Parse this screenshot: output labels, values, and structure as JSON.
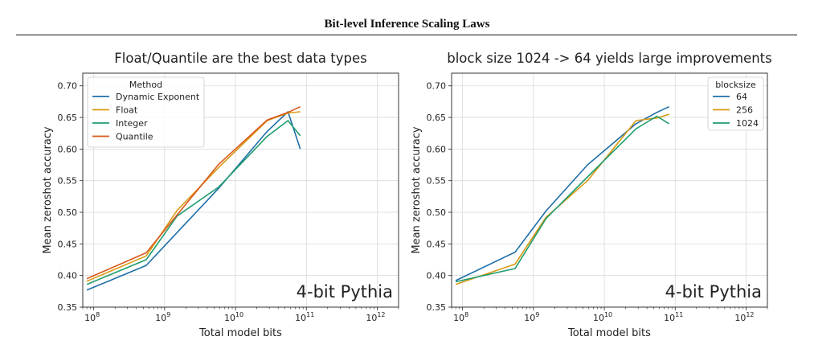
{
  "page": {
    "header": "Bit-level Inference Scaling Laws"
  },
  "chart_data": [
    {
      "type": "line",
      "title": "Float/Quantile are the best data types",
      "xlabel": "Total model bits",
      "ylabel": "Mean zeroshot accuracy",
      "xscale": "log",
      "xlim": [
        70000000,
        2000000000000
      ],
      "ylim": [
        0.35,
        0.72
      ],
      "x_ticks": [
        {
          "exp": 8,
          "label": "10",
          "sup": "8"
        },
        {
          "exp": 9,
          "label": "10",
          "sup": "9"
        },
        {
          "exp": 10,
          "label": "10",
          "sup": "10"
        },
        {
          "exp": 11,
          "label": "10",
          "sup": "11"
        },
        {
          "exp": 12,
          "label": "10",
          "sup": "12"
        }
      ],
      "y_ticks": [
        "0.35",
        "0.40",
        "0.45",
        "0.50",
        "0.55",
        "0.60",
        "0.65",
        "0.70"
      ],
      "grid": true,
      "legend": {
        "title": "Method",
        "location": "upper-left"
      },
      "annotation": "4-bit Pythia",
      "series": [
        {
          "name": "Dynamic Exponent",
          "color": "#1f6fa8",
          "x": [
            80000000,
            550000000,
            1500000000,
            5800000000,
            28000000000,
            55000000000,
            82000000000
          ],
          "y": [
            0.377,
            0.416,
            0.468,
            0.538,
            0.628,
            0.659,
            0.6
          ]
        },
        {
          "name": "Float",
          "color": "#d89a12",
          "x": [
            80000000,
            550000000,
            1500000000,
            5800000000,
            28000000000,
            55000000000,
            82000000000
          ],
          "y": [
            0.391,
            0.431,
            0.503,
            0.571,
            0.645,
            0.657,
            0.659
          ]
        },
        {
          "name": "Integer",
          "color": "#1f9c6f",
          "x": [
            80000000,
            550000000,
            1500000000,
            5800000000,
            28000000000,
            55000000000,
            82000000000
          ],
          "y": [
            0.386,
            0.425,
            0.494,
            0.54,
            0.62,
            0.645,
            0.621
          ]
        },
        {
          "name": "Quantile",
          "color": "#d9581b",
          "x": [
            80000000,
            550000000,
            1500000000,
            5800000000,
            28000000000,
            55000000000,
            82000000000
          ],
          "y": [
            0.395,
            0.436,
            0.496,
            0.576,
            0.646,
            0.658,
            0.667
          ]
        }
      ]
    },
    {
      "type": "line",
      "title": "block size 1024 -> 64 yields large improvements",
      "xlabel": "Total model bits",
      "ylabel": "Mean zeroshot accuracy",
      "xscale": "log",
      "xlim": [
        70000000,
        2000000000000
      ],
      "ylim": [
        0.35,
        0.72
      ],
      "x_ticks": [
        {
          "exp": 8,
          "label": "10",
          "sup": "8"
        },
        {
          "exp": 9,
          "label": "10",
          "sup": "9"
        },
        {
          "exp": 10,
          "label": "10",
          "sup": "10"
        },
        {
          "exp": 11,
          "label": "10",
          "sup": "11"
        },
        {
          "exp": 12,
          "label": "10",
          "sup": "12"
        }
      ],
      "y_ticks": [
        "0.35",
        "0.40",
        "0.45",
        "0.50",
        "0.55",
        "0.60",
        "0.65",
        "0.70"
      ],
      "grid": true,
      "legend": {
        "title": "blocksize",
        "location": "upper-right"
      },
      "annotation": "4-bit Pythia",
      "series": [
        {
          "name": "64",
          "color": "#1f6fa8",
          "x": [
            80000000,
            550000000,
            1500000000,
            5800000000,
            28000000000,
            55000000000,
            82000000000
          ],
          "y": [
            0.392,
            0.437,
            0.502,
            0.575,
            0.64,
            0.658,
            0.667
          ]
        },
        {
          "name": "256",
          "color": "#d89a12",
          "x": [
            80000000,
            550000000,
            1500000000,
            5800000000,
            28000000000,
            55000000000,
            82000000000
          ],
          "y": [
            0.386,
            0.418,
            0.492,
            0.55,
            0.645,
            0.649,
            0.655
          ]
        },
        {
          "name": "1024",
          "color": "#1f9c6f",
          "x": [
            80000000,
            550000000,
            1500000000,
            5800000000,
            28000000000,
            55000000000,
            82000000000
          ],
          "y": [
            0.39,
            0.411,
            0.49,
            0.556,
            0.632,
            0.652,
            0.64
          ]
        }
      ]
    }
  ]
}
